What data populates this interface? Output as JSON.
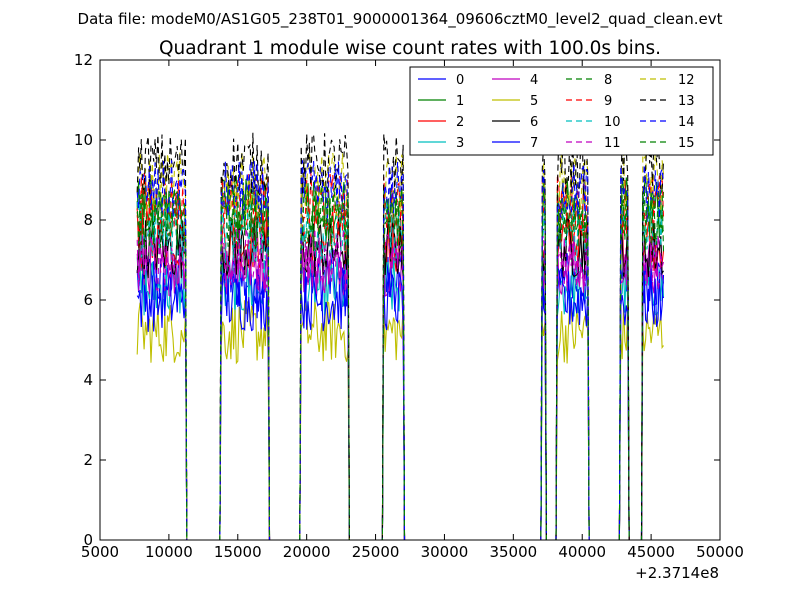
{
  "chart_data": {
    "type": "line",
    "suptitle": "Data file: modeM0/AS1G05_238T01_9000001364_09606cztM0_level2_quad_clean.evt",
    "title": "Quadrant 1 module wise count rates with 100.0s bins.",
    "xlabel": "",
    "ylabel": "",
    "x_offset_label": "+2.3714e8",
    "xlim": [
      5000,
      50000
    ],
    "ylim": [
      0,
      12
    ],
    "xticks": [
      5000,
      10000,
      15000,
      20000,
      25000,
      30000,
      35000,
      40000,
      45000,
      50000
    ],
    "yticks": [
      0,
      2,
      4,
      6,
      8,
      10,
      12
    ],
    "grid": false,
    "legend_position": "top-right",
    "legend_columns": 4,
    "series_colors": [
      "#0000ff",
      "#008000",
      "#ff0000",
      "#00bfbf",
      "#bf00bf",
      "#bfbf00",
      "#000000",
      "#0000ff",
      "#008000",
      "#ff0000",
      "#00bfbf",
      "#bf00bf",
      "#bfbf00",
      "#000000",
      "#0000ff",
      "#008000"
    ],
    "series_dashed": [
      false,
      false,
      false,
      false,
      false,
      false,
      false,
      false,
      true,
      true,
      true,
      true,
      true,
      true,
      true,
      true
    ],
    "series": [
      {
        "name": "0",
        "level": 6.5
      },
      {
        "name": "1",
        "level": 8.3
      },
      {
        "name": "2",
        "level": 7.5
      },
      {
        "name": "3",
        "level": 6.3
      },
      {
        "name": "4",
        "level": 6.9
      },
      {
        "name": "5",
        "level": 5.2
      },
      {
        "name": "6",
        "level": 7.3
      },
      {
        "name": "7",
        "level": 6.0
      },
      {
        "name": "8",
        "level": 8.1
      },
      {
        "name": "9",
        "level": 8.4
      },
      {
        "name": "10",
        "level": 7.7
      },
      {
        "name": "11",
        "level": 7.0
      },
      {
        "name": "12",
        "level": 8.9
      },
      {
        "name": "13",
        "level": 9.4
      },
      {
        "name": "14",
        "level": 8.7
      },
      {
        "name": "15",
        "level": 8.0
      }
    ],
    "active_intervals": [
      [
        7700,
        11200
      ],
      [
        13800,
        17200
      ],
      [
        19600,
        23000
      ],
      [
        25600,
        27000
      ],
      [
        37100,
        37300
      ],
      [
        38200,
        40400
      ],
      [
        42800,
        43300
      ],
      [
        44400,
        45900
      ]
    ],
    "x_range": [
      7700,
      45900
    ],
    "bin_width": 100
  }
}
